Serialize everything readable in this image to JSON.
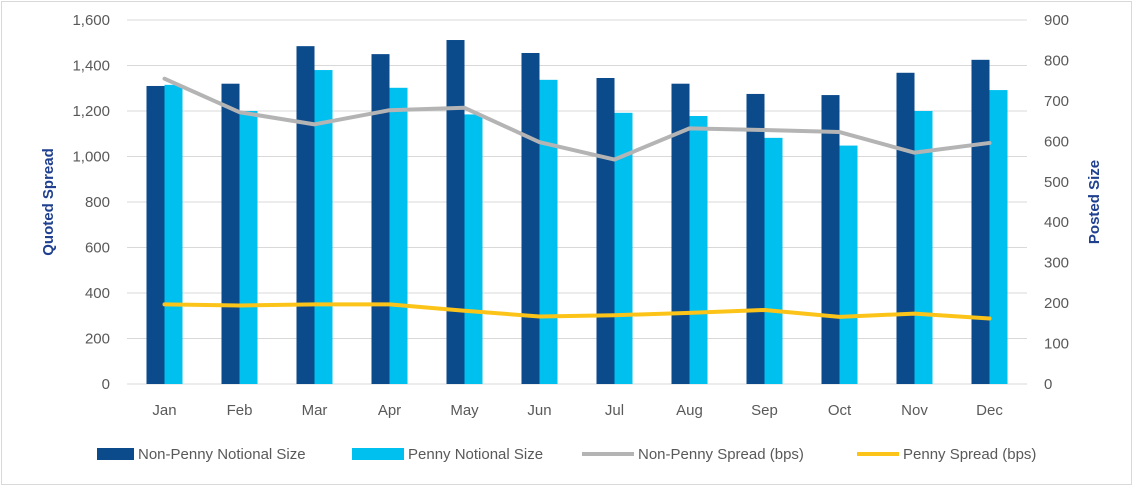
{
  "chart_data": {
    "type": "bar",
    "categories": [
      "Jan",
      "Feb",
      "Mar",
      "Apr",
      "May",
      "Jun",
      "Jul",
      "Aug",
      "Sep",
      "Oct",
      "Nov",
      "Dec"
    ],
    "ylabel": "Quoted Spread",
    "y2label": "Posted Size",
    "ylim": [
      0,
      1600
    ],
    "y2lim": [
      0,
      900
    ],
    "yticks": [
      "0",
      "200",
      "400",
      "600",
      "800",
      "1,000",
      "1,200",
      "1,400",
      "1,600"
    ],
    "y2ticks": [
      "0",
      "100",
      "200",
      "300",
      "400",
      "500",
      "600",
      "700",
      "800",
      "900"
    ],
    "grid": true,
    "legend_position": "bottom",
    "series": [
      {
        "name": "Non-Penny Notional Size",
        "type": "bar",
        "axis": "left",
        "color": "#0b4a8b",
        "values": [
          1310,
          1320,
          1485,
          1450,
          1512,
          1455,
          1345,
          1320,
          1275,
          1270,
          1368,
          1425
        ]
      },
      {
        "name": "Penny Notional Size",
        "type": "bar",
        "axis": "left",
        "color": "#00c0ef",
        "values": [
          1315,
          1200,
          1380,
          1302,
          1185,
          1337,
          1192,
          1178,
          1082,
          1048,
          1200,
          1292
        ]
      },
      {
        "name": "Non-Penny Spread (bps)",
        "type": "line",
        "axis": "right",
        "color": "#b4b4b4",
        "values": [
          755,
          672,
          642,
          677,
          683,
          598,
          555,
          632,
          628,
          623,
          572,
          596
        ]
      },
      {
        "name": "Penny Spread (bps)",
        "type": "line",
        "axis": "right",
        "color": "#fcc419",
        "values": [
          197,
          194,
          197,
          197,
          181,
          167,
          170,
          176,
          183,
          166,
          174,
          162
        ]
      }
    ]
  }
}
